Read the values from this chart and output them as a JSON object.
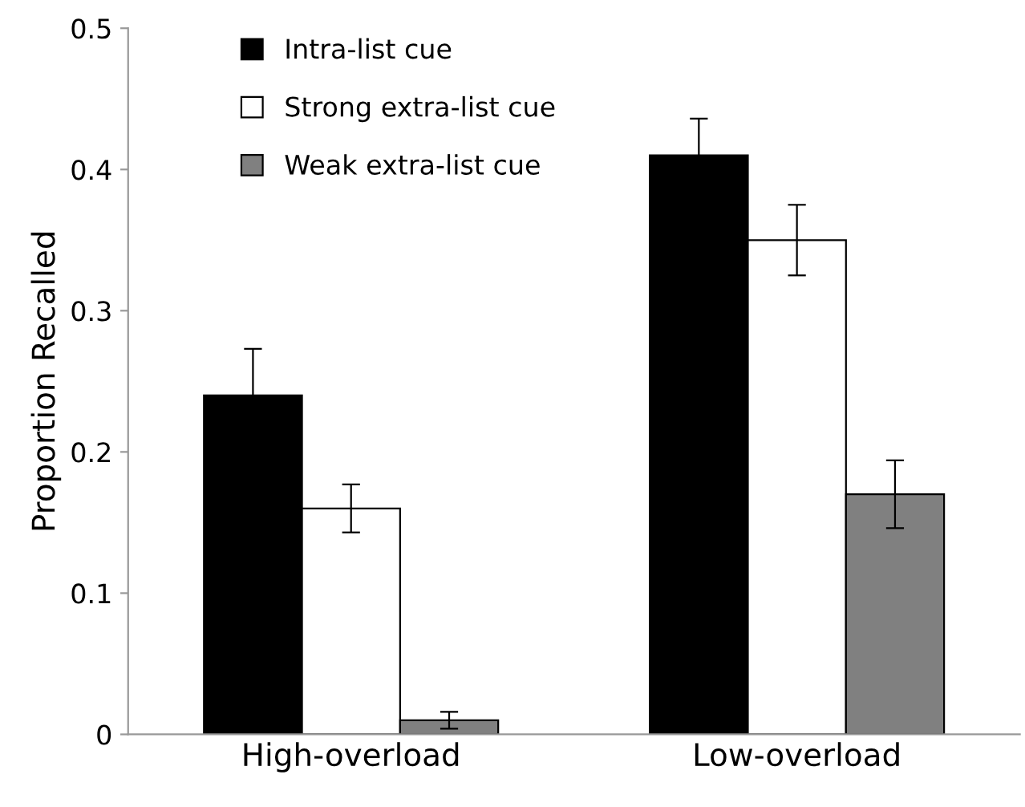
{
  "chart_data": {
    "type": "bar",
    "ylabel": "Proportion Recalled",
    "categories": [
      "High-overload",
      "Low-overload"
    ],
    "series": [
      {
        "name": "Intra-list cue",
        "color": "#000000",
        "values": [
          0.24,
          0.41
        ],
        "errors": [
          0.033,
          0.026
        ]
      },
      {
        "name": "Strong extra-list cue",
        "color": "#ffffff",
        "values": [
          0.16,
          0.35
        ],
        "errors": [
          0.017,
          0.025
        ]
      },
      {
        "name": "Weak extra-list cue",
        "color": "#808080",
        "values": [
          0.01,
          0.17
        ],
        "errors": [
          0.006,
          0.024
        ]
      }
    ],
    "ylim": [
      0,
      0.5
    ],
    "yticks": [
      {
        "value": 0,
        "label": "0"
      },
      0.1,
      0.2,
      0.3,
      0.4,
      0.5
    ],
    "grid": false,
    "legend": "top left"
  }
}
